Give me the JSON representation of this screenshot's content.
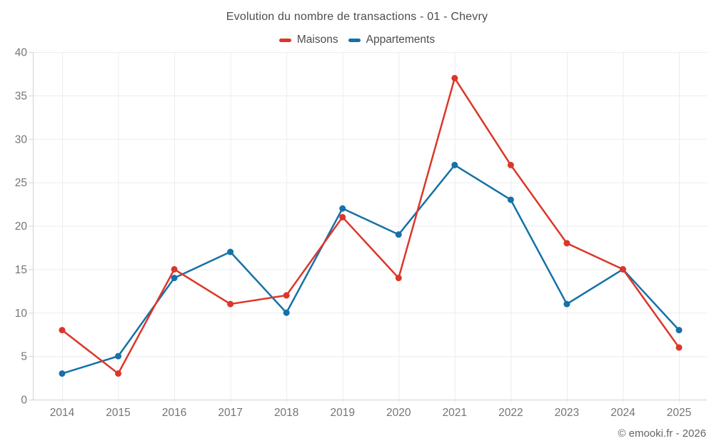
{
  "chart_data": {
    "type": "line",
    "title": "Evolution du nombre de transactions - 01 - Chevry",
    "x": [
      "2014",
      "2015",
      "2016",
      "2017",
      "2018",
      "2019",
      "2020",
      "2021",
      "2022",
      "2023",
      "2024",
      "2025"
    ],
    "xlabel": "",
    "ylabel": "",
    "ylim": [
      0,
      40
    ],
    "yticks": [
      0,
      5,
      10,
      15,
      20,
      25,
      30,
      35,
      40
    ],
    "grid": true,
    "legend_position": "top",
    "series": [
      {
        "name": "Maisons",
        "color": "#dc362a",
        "values": [
          8,
          3,
          15,
          11,
          12,
          21,
          14,
          37,
          27,
          18,
          15,
          6
        ]
      },
      {
        "name": "Appartements",
        "color": "#1571a8",
        "values": [
          3,
          5,
          14,
          17,
          10,
          22,
          19,
          27,
          23,
          11,
          15,
          8
        ]
      }
    ]
  },
  "footer": {
    "copyright": "© emooki.fr - 2026"
  },
  "theme": {
    "background": "#ffffff",
    "grid_color": "#ececec",
    "axis_color": "#d2d2d2",
    "tick_label_color": "#757575",
    "title_color": "#4d4d4d",
    "copyright_color": "#666666"
  }
}
